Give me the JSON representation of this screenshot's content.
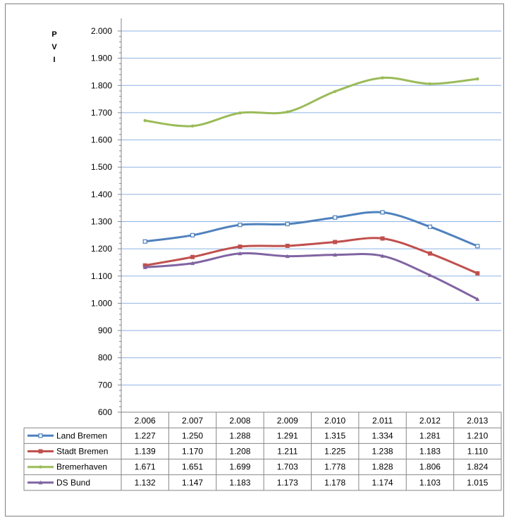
{
  "chart_data": {
    "type": "line",
    "ylabel": "P V I",
    "ylim": [
      600,
      2000
    ],
    "ytick_step": 100,
    "ytick_labels": [
      "600",
      "700",
      "800",
      "900",
      "1.000",
      "1.100",
      "1.200",
      "1.300",
      "1.400",
      "1.500",
      "1.600",
      "1.700",
      "1.800",
      "1.900",
      "2.000"
    ],
    "categories": [
      "2.006",
      "2.007",
      "2.008",
      "2.009",
      "2.010",
      "2.011",
      "2.012",
      "2.013"
    ],
    "grid": true,
    "legend": "data-table",
    "series": [
      {
        "name": "Land Bremen",
        "color": "#4F81BD",
        "marker": "square-open",
        "values": [
          1227,
          1250,
          1288,
          1291,
          1315,
          1334,
          1281,
          1210
        ],
        "labels": [
          "1.227",
          "1.250",
          "1.288",
          "1.291",
          "1.315",
          "1.334",
          "1.281",
          "1.210"
        ]
      },
      {
        "name": "Stadt Bremen",
        "color": "#C0504D",
        "marker": "square",
        "values": [
          1139,
          1170,
          1208,
          1211,
          1225,
          1238,
          1183,
          1110
        ],
        "labels": [
          "1.139",
          "1.170",
          "1.208",
          "1.211",
          "1.225",
          "1.238",
          "1.183",
          "1.110"
        ]
      },
      {
        "name": "Bremerhaven",
        "color": "#9BBB59",
        "marker": "dot",
        "values": [
          1671,
          1651,
          1699,
          1703,
          1778,
          1828,
          1806,
          1824
        ],
        "labels": [
          "1.671",
          "1.651",
          "1.699",
          "1.703",
          "1.778",
          "1.828",
          "1.806",
          "1.824"
        ]
      },
      {
        "name": "DS Bund",
        "color": "#8064A2",
        "marker": "triangle",
        "values": [
          1132,
          1147,
          1183,
          1173,
          1178,
          1174,
          1103,
          1015
        ],
        "labels": [
          "1.132",
          "1.147",
          "1.183",
          "1.173",
          "1.178",
          "1.174",
          "1.103",
          "1.015"
        ]
      }
    ]
  }
}
